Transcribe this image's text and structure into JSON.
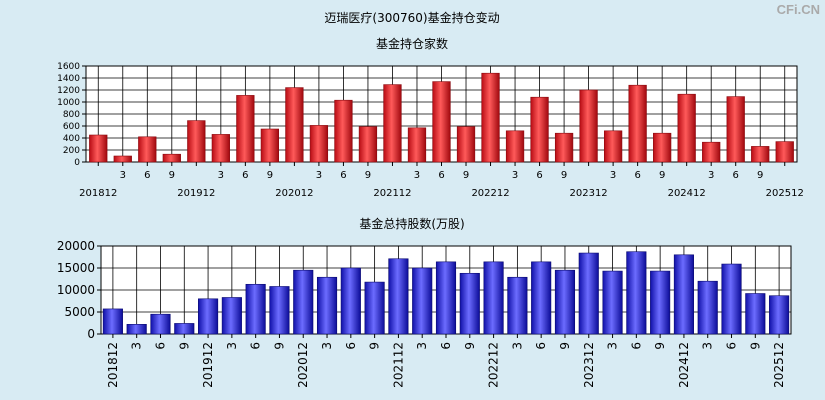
{
  "page_title": "迈瑞医疗(300760)基金持仓变动",
  "watermark": "CFi.CN",
  "colors": {
    "background": "#d8ebf3",
    "bar_top": "#e8202a",
    "bar_bottom": "#2828e0"
  },
  "chart_data": [
    {
      "type": "bar",
      "title": "基金持仓家数",
      "categories": [
        "201812",
        "3",
        "6",
        "9",
        "201912",
        "3",
        "6",
        "9",
        "202012",
        "3",
        "6",
        "9",
        "202112",
        "3",
        "6",
        "9",
        "202212",
        "3",
        "6",
        "9",
        "202312",
        "3",
        "6",
        "9",
        "202412",
        "3",
        "6",
        "9",
        "202512"
      ],
      "values": [
        450,
        100,
        420,
        130,
        690,
        460,
        1110,
        550,
        1240,
        610,
        1030,
        590,
        1290,
        570,
        1340,
        590,
        1480,
        520,
        1080,
        480,
        1200,
        520,
        1280,
        480,
        1130,
        330,
        1090,
        260,
        340
      ],
      "ylim": [
        0,
        1600
      ],
      "yticks": [
        0,
        200,
        400,
        600,
        800,
        1000,
        1200,
        1400,
        1600
      ],
      "grid": true
    },
    {
      "type": "bar",
      "title": "基金总持股数(万股)",
      "categories": [
        "201812",
        "3",
        "6",
        "9",
        "201912",
        "3",
        "6",
        "9",
        "202012",
        "3",
        "6",
        "9",
        "202112",
        "3",
        "6",
        "9",
        "202212",
        "3",
        "6",
        "9",
        "202312",
        "3",
        "6",
        "9",
        "202412",
        "3",
        "6",
        "9",
        "202512"
      ],
      "values": [
        5700,
        2200,
        4500,
        2400,
        8000,
        8300,
        11300,
        10800,
        14500,
        12900,
        15000,
        11800,
        17100,
        15000,
        16400,
        13800,
        16400,
        12900,
        16400,
        14500,
        18400,
        14300,
        18700,
        14300,
        18000,
        12000,
        15900,
        9200,
        8700
      ],
      "ylim": [
        0,
        20000
      ],
      "yticks": [
        0,
        5000,
        10000,
        15000,
        20000
      ],
      "grid": true
    }
  ]
}
